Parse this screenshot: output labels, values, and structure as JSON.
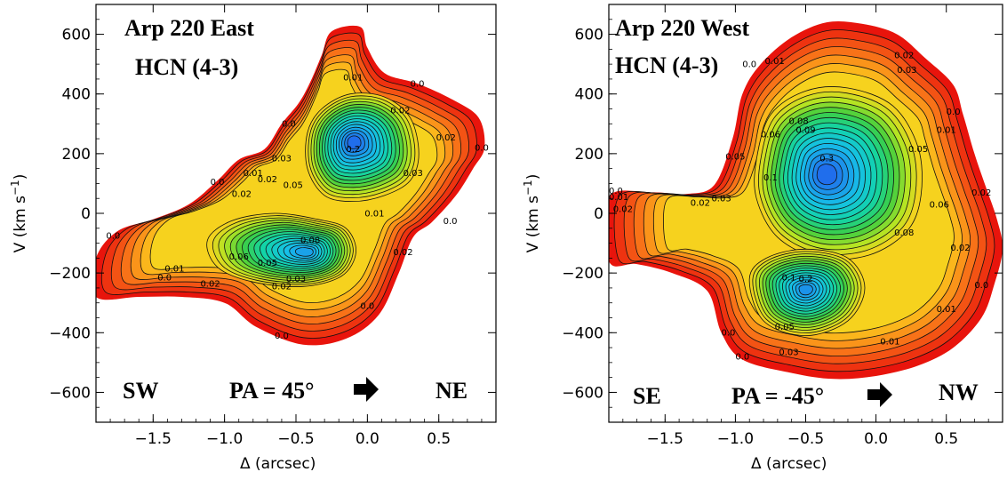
{
  "chart_data": [
    {
      "type": "contour",
      "panel": "left",
      "title_line1": "Arp 220 East",
      "title_line2": "HCN (4-3)",
      "xlabel": "Δ (arcsec)",
      "ylabel_main": "V (km s",
      "ylabel_sup": "−1",
      "ylabel_close": ")",
      "xlim": [
        -1.9,
        0.9
      ],
      "ylim": [
        -700,
        700
      ],
      "xticks": [
        -1.5,
        -1.0,
        -0.5,
        0.0,
        0.5
      ],
      "xtick_labels": [
        "−1.5",
        "−1.0",
        "−0.5",
        "0.0",
        "0.5"
      ],
      "yticks": [
        -600,
        -400,
        -200,
        0,
        200,
        400,
        600
      ],
      "ytick_labels": [
        "−600",
        "−400",
        "−200",
        "0",
        "200",
        "400",
        "600"
      ],
      "corner_left": "SW",
      "corner_right": "NE",
      "pa_label": "PA = 45°",
      "arrow_icon": "right-arrow-icon",
      "peaks": [
        {
          "x": -0.1,
          "y": 240,
          "value": 0.2
        },
        {
          "x": -0.4,
          "y": -130,
          "value": 0.08
        }
      ],
      "contour_labels": [
        {
          "text": "0.0",
          "x": 0.35,
          "y": 425
        },
        {
          "text": "0.01",
          "x": -0.1,
          "y": 445
        },
        {
          "text": "0.0",
          "x": -0.55,
          "y": 290
        },
        {
          "text": "0.02",
          "x": 0.23,
          "y": 335
        },
        {
          "text": "0.02",
          "x": 0.55,
          "y": 245
        },
        {
          "text": "0.0",
          "x": 0.8,
          "y": 210
        },
        {
          "text": "0.03",
          "x": -0.6,
          "y": 175
        },
        {
          "text": "0.01",
          "x": -0.8,
          "y": 125
        },
        {
          "text": "0.02",
          "x": -0.7,
          "y": 105
        },
        {
          "text": "0.0",
          "x": -1.05,
          "y": 95
        },
        {
          "text": "0.2",
          "x": -0.1,
          "y": 205
        },
        {
          "text": "0.03",
          "x": 0.32,
          "y": 125
        },
        {
          "text": "0.05",
          "x": -0.52,
          "y": 85
        },
        {
          "text": "0.02",
          "x": -0.88,
          "y": 55
        },
        {
          "text": "0.01",
          "x": 0.05,
          "y": -10
        },
        {
          "text": "0.0",
          "x": 0.58,
          "y": -35
        },
        {
          "text": "0.0",
          "x": -1.78,
          "y": -85
        },
        {
          "text": "0.08",
          "x": -0.4,
          "y": -100
        },
        {
          "text": "0.06",
          "x": -0.9,
          "y": -155
        },
        {
          "text": "0.05",
          "x": -0.7,
          "y": -175
        },
        {
          "text": "0.02",
          "x": 0.25,
          "y": -140
        },
        {
          "text": "0.01",
          "x": -1.35,
          "y": -195
        },
        {
          "text": "0.0",
          "x": -1.42,
          "y": -225
        },
        {
          "text": "0.03",
          "x": -0.5,
          "y": -230
        },
        {
          "text": "0.02",
          "x": -0.6,
          "y": -255
        },
        {
          "text": "0.02",
          "x": -1.1,
          "y": -245
        },
        {
          "text": "0.0",
          "x": 0.0,
          "y": -320
        },
        {
          "text": "0.0",
          "x": -0.6,
          "y": -420
        }
      ]
    },
    {
      "type": "contour",
      "panel": "right",
      "title_line1": "Arp 220 West",
      "title_line2": "HCN (4-3)",
      "xlabel": "Δ (arcsec)",
      "ylabel_main": "V (km s",
      "ylabel_sup": "−1",
      "ylabel_close": ")",
      "xlim": [
        -1.9,
        0.9
      ],
      "ylim": [
        -700,
        700
      ],
      "xticks": [
        -1.5,
        -1.0,
        -0.5,
        0.0,
        0.5
      ],
      "xtick_labels": [
        "−1.5",
        "−1.0",
        "−0.5",
        "0.0",
        "0.5"
      ],
      "yticks": [
        -600,
        -400,
        -200,
        0,
        200,
        400,
        600
      ],
      "ytick_labels": [
        "−600",
        "−400",
        "−200",
        "0",
        "200",
        "400",
        "600"
      ],
      "corner_left": "SE",
      "corner_right": "NW",
      "pa_label": "PA = -45°",
      "arrow_icon": "right-arrow-icon",
      "peaks": [
        {
          "x": -0.35,
          "y": 130,
          "value": 0.3
        },
        {
          "x": -0.5,
          "y": -255,
          "value": 0.2
        }
      ],
      "contour_labels": [
        {
          "text": "0.0",
          "x": -0.9,
          "y": 490
        },
        {
          "text": "0.01",
          "x": -0.72,
          "y": 500
        },
        {
          "text": "0.02",
          "x": 0.2,
          "y": 520
        },
        {
          "text": "0.03",
          "x": 0.22,
          "y": 470
        },
        {
          "text": "0.0",
          "x": 0.55,
          "y": 330
        },
        {
          "text": "0.01",
          "x": 0.5,
          "y": 270
        },
        {
          "text": "0.06",
          "x": -0.75,
          "y": 255
        },
        {
          "text": "0.08",
          "x": -0.55,
          "y": 300
        },
        {
          "text": "0.09",
          "x": -0.5,
          "y": 270
        },
        {
          "text": "0.05",
          "x": 0.3,
          "y": 205
        },
        {
          "text": "0.05",
          "x": -1.0,
          "y": 180
        },
        {
          "text": "0.3",
          "x": -0.35,
          "y": 175
        },
        {
          "text": "0.02",
          "x": 0.75,
          "y": 60
        },
        {
          "text": "0.0",
          "x": -1.85,
          "y": 65
        },
        {
          "text": "0.01",
          "x": -1.83,
          "y": 45
        },
        {
          "text": "0.02",
          "x": -1.8,
          "y": 5
        },
        {
          "text": "0.02",
          "x": -1.25,
          "y": 25
        },
        {
          "text": "0.03",
          "x": -1.1,
          "y": 40
        },
        {
          "text": "0.1",
          "x": -0.75,
          "y": 110
        },
        {
          "text": "0.06",
          "x": 0.45,
          "y": 20
        },
        {
          "text": "0.08",
          "x": 0.2,
          "y": -75
        },
        {
          "text": "0.02",
          "x": 0.6,
          "y": -125
        },
        {
          "text": "0.1",
          "x": -0.62,
          "y": -225
        },
        {
          "text": "0.2",
          "x": -0.5,
          "y": -230
        },
        {
          "text": "0.0",
          "x": 0.75,
          "y": -250
        },
        {
          "text": "0.01",
          "x": 0.5,
          "y": -330
        },
        {
          "text": "0.01",
          "x": 0.1,
          "y": -440
        },
        {
          "text": "0.0",
          "x": -1.05,
          "y": -410
        },
        {
          "text": "0.0",
          "x": -0.95,
          "y": -490
        },
        {
          "text": "0.03",
          "x": -0.62,
          "y": -475
        },
        {
          "text": "0.05",
          "x": -0.65,
          "y": -390
        }
      ]
    }
  ]
}
